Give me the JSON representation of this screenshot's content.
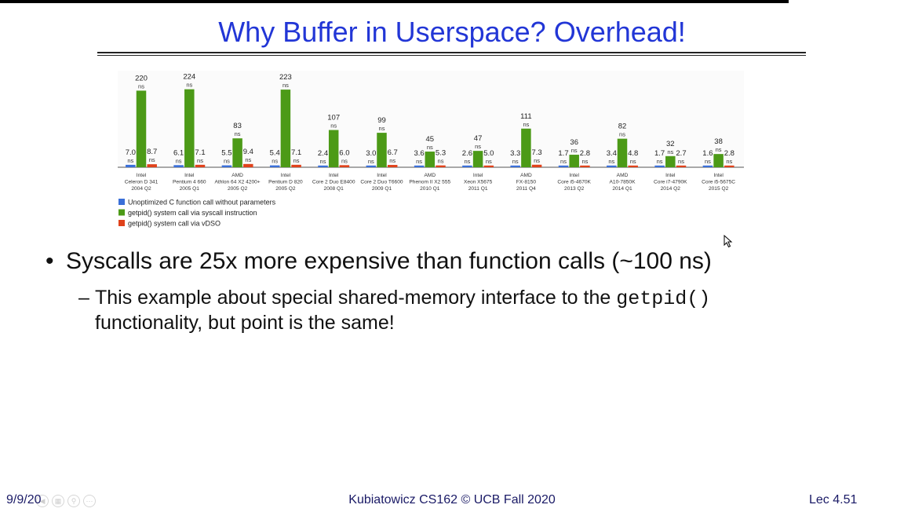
{
  "slide": {
    "title": "Why Buffer in Userspace? Overhead!",
    "bullet_main": "Syscalls are 25x more expensive than function calls (~100 ns)",
    "bullet_sub_part1": "This example about special shared-memory interface to the ",
    "bullet_sub_code": "getpid()",
    "bullet_sub_part2": "functionality, but point is the same!",
    "footer_date": "9/9/20",
    "footer_center": "Kubiatowicz CS162 © UCB Fall 2020",
    "footer_right": "Lec 4.51",
    "bullet_glyph": "•",
    "dash_glyph": "–"
  },
  "colors": {
    "title": "#2236d6",
    "series_blue": "#3a6fd8",
    "series_green": "#4c9a17",
    "series_red": "#e0421b"
  },
  "icons": {
    "cursor": "mouse-pointer-icon"
  },
  "chart_data": {
    "type": "bar",
    "unit_label": "ns",
    "categories": [
      [
        "Intel",
        "Celeron D 341",
        "2004 Q2"
      ],
      [
        "Intel",
        "Pentium 4 660",
        "2005 Q1"
      ],
      [
        "AMD",
        "Athlon 64 X2 4200+",
        "2005 Q2"
      ],
      [
        "Intel",
        "Pentium D 820",
        "2005 Q2"
      ],
      [
        "Intel",
        "Core 2 Duo E8400",
        "2008 Q1"
      ],
      [
        "Intel",
        "Core 2 Duo T6600",
        "2009 Q1"
      ],
      [
        "AMD",
        "Phenom II X2 555",
        "2010 Q1"
      ],
      [
        "Intel",
        "Xeon X5675",
        "2011 Q1"
      ],
      [
        "AMD",
        "FX-8150",
        "2011 Q4"
      ],
      [
        "Intel",
        "Core i5-4670K",
        "2013 Q2"
      ],
      [
        "AMD",
        "A10-7850K",
        "2014 Q1"
      ],
      [
        "Intel",
        "Core i7-4790K",
        "2014 Q2"
      ],
      [
        "Intel",
        "Core i5-5675C",
        "2015 Q2"
      ]
    ],
    "series": [
      {
        "name": "Unoptimized C function call without parameters",
        "color": "#3a6fd8",
        "values": [
          7.0,
          6.1,
          5.5,
          5.4,
          2.4,
          3.0,
          3.6,
          2.6,
          3.3,
          1.7,
          3.4,
          1.7,
          1.6
        ],
        "labels": [
          "7.0",
          "6.1",
          "5.5",
          "5.4",
          "2.4",
          "3.0",
          "3.6",
          "2.6",
          "3.3",
          "1.7",
          "3.4",
          "1.7",
          "1.6"
        ]
      },
      {
        "name": "getpid() system call via syscall instruction",
        "color": "#4c9a17",
        "values": [
          220,
          224,
          83,
          223,
          107,
          99,
          45,
          47,
          111,
          36,
          82,
          32,
          38
        ],
        "labels": [
          "220",
          "224",
          "83",
          "223",
          "107",
          "99",
          "45",
          "47",
          "111",
          "36",
          "82",
          "32",
          "38"
        ]
      },
      {
        "name": "getpid() system call via vDSO",
        "color": "#e0421b",
        "values": [
          8.7,
          7.1,
          9.4,
          7.1,
          6.0,
          6.7,
          5.3,
          5.0,
          7.3,
          2.8,
          4.8,
          2.7,
          2.8
        ],
        "labels": [
          "8.7",
          "7.1",
          "9.4",
          "7.1",
          "6.0",
          "6.7",
          "5.3",
          "5.0",
          "7.3",
          "2.8",
          "4.8",
          "2.7",
          "2.8"
        ]
      }
    ],
    "ylim": [
      0,
      230
    ],
    "grid": false,
    "legend_position": "bottom-left"
  }
}
